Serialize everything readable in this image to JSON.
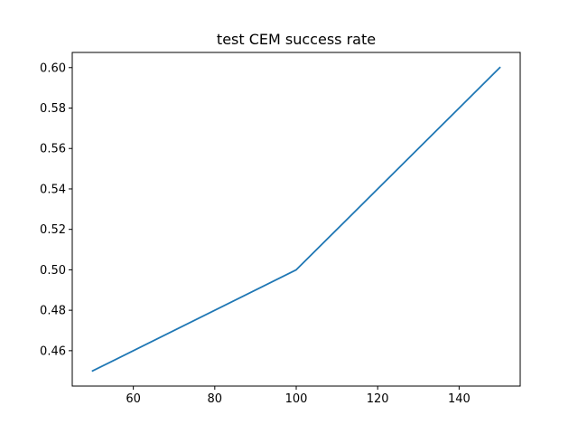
{
  "chart_data": {
    "type": "line",
    "title": "test CEM success rate",
    "xlabel": "",
    "ylabel": "",
    "x": [
      50,
      100,
      150
    ],
    "series": [
      {
        "values": [
          0.45,
          0.5,
          0.6
        ],
        "color": "#1f77b4"
      }
    ],
    "xlim": [
      45,
      155
    ],
    "ylim": [
      0.4425,
      0.6075
    ],
    "xticks": [
      60,
      80,
      100,
      120,
      140
    ],
    "xtick_labels": [
      "60",
      "80",
      "100",
      "120",
      "140"
    ],
    "yticks": [
      0.46,
      0.48,
      0.5,
      0.52,
      0.54,
      0.56,
      0.58,
      0.6
    ],
    "ytick_labels": [
      "0.46",
      "0.48",
      "0.50",
      "0.52",
      "0.54",
      "0.56",
      "0.58",
      "0.60"
    ],
    "grid": false,
    "legend": false
  }
}
